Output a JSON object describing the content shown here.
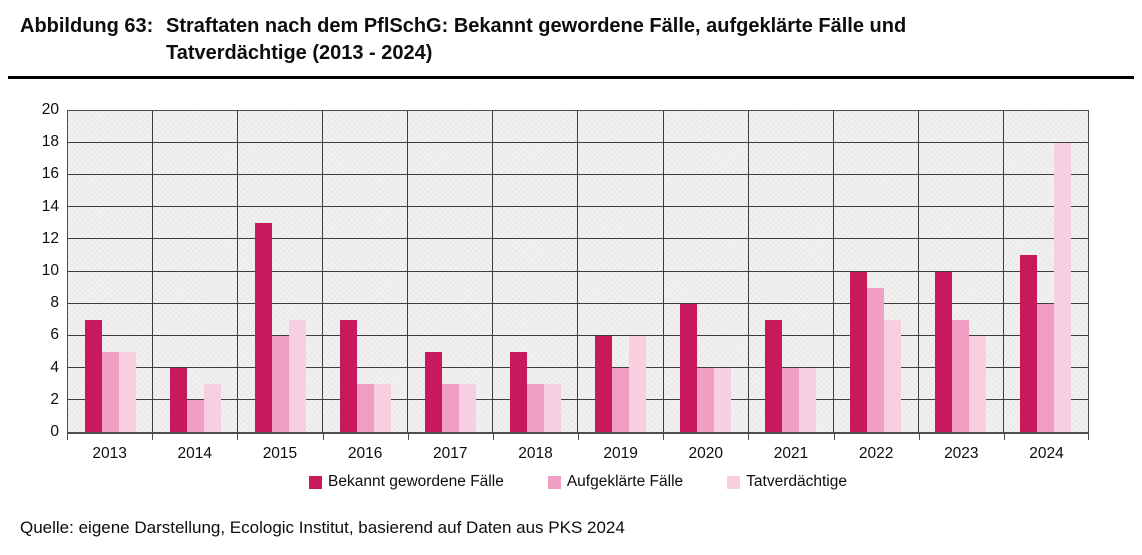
{
  "figure": {
    "label": "Abbildung 63:",
    "title_lines": [
      "Straftaten nach dem PflSchG: Bekannt gewordene Fälle, aufgeklärte Fälle und",
      "Tatverdächtige (2013 - 2024)"
    ],
    "source": "Quelle: eigene Darstellung, Ecologic Institut, basierend auf Daten aus PKS 2024"
  },
  "chart_data": {
    "type": "bar",
    "title": "Straftaten nach dem PflSchG: Bekannt gewordene Fälle, aufgeklärte Fälle und Tatverdächtige (2013 - 2024)",
    "categories": [
      "2013",
      "2014",
      "2015",
      "2016",
      "2017",
      "2018",
      "2019",
      "2020",
      "2021",
      "2022",
      "2023",
      "2024"
    ],
    "series": [
      {
        "name": "Bekannt gewordene Fälle",
        "color": "#C9195D",
        "values": [
          7,
          4,
          13,
          7,
          5,
          5,
          6,
          8,
          7,
          10,
          10,
          11
        ]
      },
      {
        "name": "Aufgeklärte Fälle",
        "color": "#F09EC3",
        "values": [
          5,
          2,
          6,
          3,
          3,
          3,
          4,
          4,
          4,
          9,
          7,
          8
        ]
      },
      {
        "name": "Tatverdächtige",
        "color": "#F8CFE0",
        "values": [
          5,
          3,
          7,
          3,
          3,
          3,
          6,
          4,
          4,
          7,
          6,
          18
        ]
      }
    ],
    "xlabel": "",
    "ylabel": "",
    "ylim": [
      0,
      20
    ],
    "ytick_step": 2,
    "yticks": [
      0,
      2,
      4,
      6,
      8,
      10,
      12,
      14,
      16,
      18,
      20
    ],
    "grid": true,
    "legend_position": "bottom",
    "plot_bg_color": "#F2F1F1",
    "gridline_color": "#3C3C3C",
    "border_color": "#4D4D4D"
  }
}
